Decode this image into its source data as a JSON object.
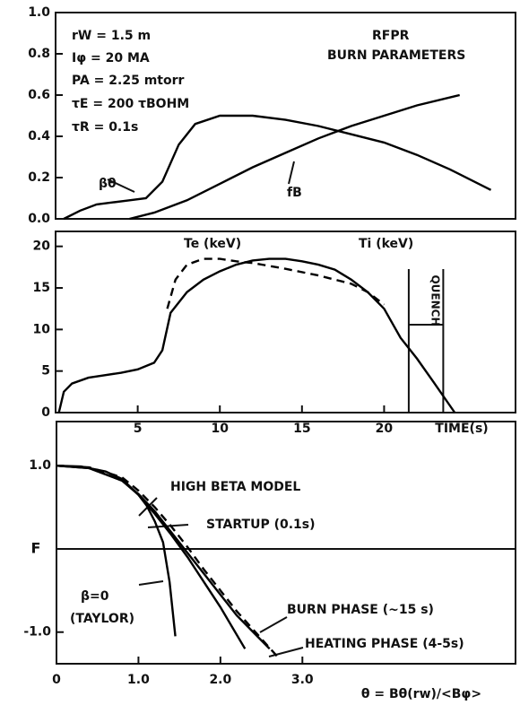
{
  "chart_data": [
    {
      "type": "line",
      "title": "RFPR",
      "subtitle": "BURN PARAMETERS",
      "annotations": [
        "rW = 1.5 m",
        "Iφ = 20 MA",
        "PA = 2.25 mtorr",
        "τE = 200 τBOHM",
        "τR = 0.1s"
      ],
      "xlim": [
        0,
        28
      ],
      "ylim": [
        0,
        1
      ],
      "yticks": [
        {
          "value": 1,
          "label": "1.0"
        },
        0.8,
        0.6,
        0.4,
        0.2,
        {
          "value": 0,
          "label": "0.0"
        }
      ],
      "series": [
        {
          "name": "βθ",
          "color": "#000000",
          "x": [
            0.5,
            1.5,
            2.5,
            3.5,
            4.5,
            5.5,
            6.5,
            7.5,
            8.5,
            10,
            12,
            14,
            16,
            18,
            20,
            22,
            24,
            26.5
          ],
          "values": [
            0,
            0.04,
            0.07,
            0.08,
            0.09,
            0.1,
            0.18,
            0.36,
            0.46,
            0.5,
            0.5,
            0.48,
            0.45,
            0.41,
            0.37,
            0.31,
            0.24,
            0.14
          ]
        },
        {
          "name": "fB",
          "color": "#000000",
          "x": [
            4.5,
            6,
            8,
            10,
            12,
            14,
            16,
            18,
            20,
            22,
            24.6
          ],
          "values": [
            0,
            0.03,
            0.09,
            0.17,
            0.25,
            0.32,
            0.39,
            0.45,
            0.5,
            0.55,
            0.6
          ]
        }
      ]
    },
    {
      "type": "line",
      "x_label": "TIME(s)",
      "annotations": [
        "QUENCH"
      ],
      "quench_x": [
        21.5,
        23.6
      ],
      "xlim": [
        0,
        28
      ],
      "ylim": [
        0,
        21.8
      ],
      "xticks": [
        5,
        10,
        15,
        20
      ],
      "yticks": [
        0,
        5,
        10,
        15,
        20
      ],
      "series": [
        {
          "name": "Ti (keV)",
          "color": "#000000",
          "dashed": false,
          "x": [
            0.2,
            0.5,
            1,
            2,
            3,
            4,
            5,
            6,
            6.5,
            7,
            8,
            9,
            10,
            11,
            12,
            13,
            14,
            15,
            16,
            17,
            18,
            19,
            20,
            21,
            22,
            23,
            24.3
          ],
          "values": [
            0,
            2.5,
            3.5,
            4.2,
            4.5,
            4.8,
            5.2,
            6,
            7.5,
            12,
            14.5,
            16,
            17,
            17.8,
            18.3,
            18.5,
            18.5,
            18.2,
            17.8,
            17.2,
            16,
            14.5,
            12.5,
            9,
            6.5,
            3.7,
            0
          ]
        },
        {
          "name": "Te (keV)",
          "color": "#000000",
          "dashed": true,
          "x": [
            6.8,
            7.3,
            8,
            9,
            10,
            11,
            12,
            14,
            16,
            18,
            19,
            20
          ],
          "values": [
            12.5,
            16,
            17.8,
            18.5,
            18.5,
            18.2,
            18,
            17.3,
            16.5,
            15.5,
            14.5,
            13
          ]
        }
      ]
    },
    {
      "type": "line",
      "x_label": "θ = Bθ(rw)/<Bφ>",
      "y_label": "F",
      "annotations": [
        "HIGH BETA MODEL",
        "(TAYLOR)"
      ],
      "xlim": [
        0,
        5.6
      ],
      "ylim": [
        -1.38,
        1.53
      ],
      "xticks": [
        0,
        {
          "value": 1,
          "label": "1.0"
        },
        {
          "value": 2,
          "label": "2.0"
        },
        {
          "value": 3,
          "label": "3.0"
        }
      ],
      "yticks": [
        {
          "value": 1,
          "label": "1.0"
        },
        {
          "value": -1,
          "label": "-1.0"
        }
      ],
      "series": [
        {
          "name": "β=0",
          "color": "#000000",
          "dashed": false,
          "x": [
            0,
            0.3,
            0.6,
            0.8,
            1.0,
            1.1,
            1.2,
            1.3,
            1.38,
            1.45
          ],
          "values": [
            1,
            0.99,
            0.93,
            0.84,
            0.65,
            0.52,
            0.33,
            0.08,
            -0.4,
            -1.05
          ]
        },
        {
          "name": "STARTUP (0.1s)",
          "color": "#000000",
          "dashed": false,
          "x": [
            0,
            0.4,
            0.8,
            1.0,
            1.2,
            1.4,
            1.6,
            1.8,
            2.0,
            2.15,
            2.3
          ],
          "values": [
            1,
            0.97,
            0.82,
            0.65,
            0.42,
            0.17,
            -0.1,
            -0.4,
            -0.7,
            -0.95,
            -1.2
          ]
        },
        {
          "name": "BURN PHASE (~15 s)",
          "color": "#000000",
          "dashed": false,
          "x": [
            0,
            0.4,
            0.8,
            1.0,
            1.2,
            1.4,
            1.6,
            1.8,
            2.0,
            2.2,
            2.4,
            2.6
          ],
          "values": [
            1,
            0.97,
            0.82,
            0.66,
            0.45,
            0.2,
            -0.05,
            -0.3,
            -0.55,
            -0.8,
            -1.0,
            -1.2
          ]
        },
        {
          "name": "HEATING PHASE (4-5s)",
          "color": "#000000",
          "dashed": true,
          "x": [
            0,
            0.4,
            0.8,
            1.0,
            1.2,
            1.4,
            1.6,
            1.8,
            2.0,
            2.2,
            2.4,
            2.7
          ],
          "values": [
            1,
            0.98,
            0.86,
            0.7,
            0.5,
            0.27,
            0.02,
            -0.25,
            -0.5,
            -0.75,
            -0.97,
            -1.3
          ]
        }
      ]
    }
  ]
}
